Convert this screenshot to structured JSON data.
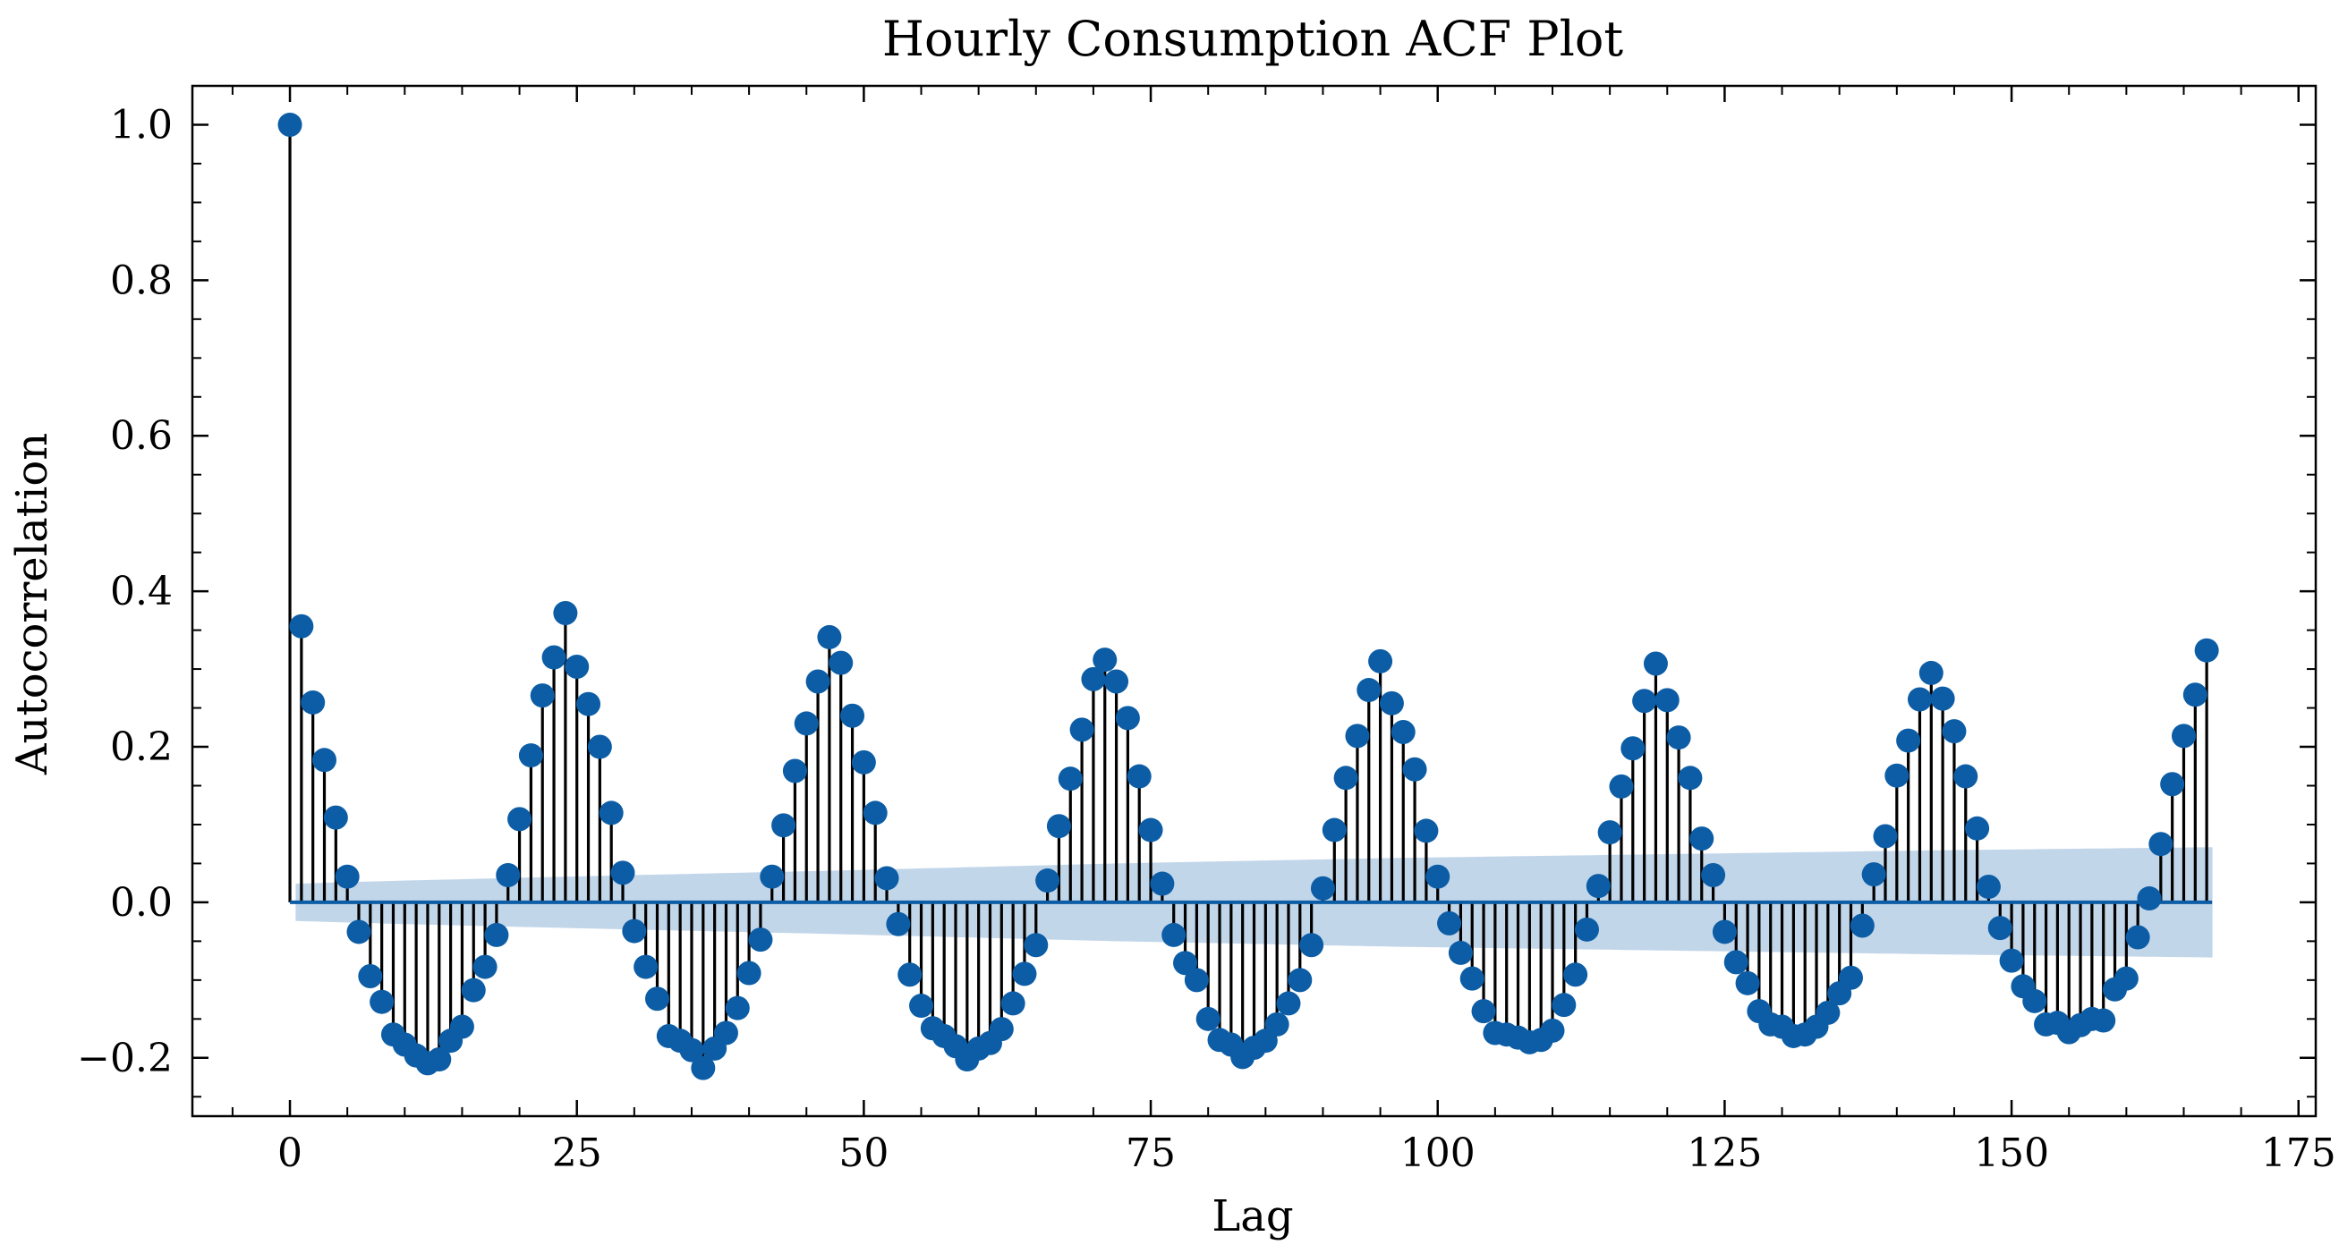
{
  "chart_data": {
    "type": "stem",
    "title": "Hourly Consumption ACF Plot",
    "xlabel": "Lag",
    "ylabel": "Autocorrelation",
    "xlim": [
      -8.5,
      176.5
    ],
    "ylim": [
      -0.275,
      1.05
    ],
    "x_ticks": [
      0,
      25,
      50,
      75,
      100,
      125,
      150,
      175
    ],
    "x_tick_labels": [
      "0",
      "25",
      "50",
      "75",
      "100",
      "125",
      "150",
      "175"
    ],
    "y_ticks": [
      -0.2,
      0.0,
      0.2,
      0.4,
      0.6,
      0.8,
      1.0
    ],
    "y_tick_labels": [
      "−0.2",
      "0.0",
      "0.2",
      "0.4",
      "0.6",
      "0.8",
      "1.0"
    ],
    "colors": {
      "markers": "#0C5DA5",
      "stems": "#000000",
      "baseline": "#0C5DA5",
      "confidence_band": "#c2d6ea"
    },
    "confidence_band": {
      "lags": [
        0.5,
        10,
        24,
        48,
        72,
        96,
        120,
        144,
        168
      ],
      "upper": [
        0.024,
        0.028,
        0.033,
        0.041,
        0.05,
        0.057,
        0.062,
        0.067,
        0.071
      ],
      "lower": [
        -0.024,
        -0.028,
        -0.033,
        -0.041,
        -0.05,
        -0.057,
        -0.062,
        -0.067,
        -0.071
      ]
    },
    "acf": [
      1.0,
      0.355,
      0.257,
      0.183,
      0.109,
      0.033,
      -0.038,
      -0.095,
      -0.128,
      -0.17,
      -0.183,
      -0.197,
      -0.207,
      -0.202,
      -0.178,
      -0.16,
      -0.113,
      -0.083,
      -0.042,
      0.035,
      0.107,
      0.189,
      0.266,
      0.315,
      0.372,
      0.303,
      0.255,
      0.2,
      0.115,
      0.038,
      -0.037,
      -0.083,
      -0.124,
      -0.172,
      -0.178,
      -0.19,
      -0.213,
      -0.188,
      -0.168,
      -0.136,
      -0.091,
      -0.048,
      0.033,
      0.099,
      0.169,
      0.23,
      0.284,
      0.341,
      0.308,
      0.24,
      0.18,
      0.115,
      0.031,
      -0.028,
      -0.093,
      -0.133,
      -0.162,
      -0.172,
      -0.185,
      -0.202,
      -0.188,
      -0.181,
      -0.163,
      -0.13,
      -0.092,
      -0.055,
      0.028,
      0.098,
      0.159,
      0.222,
      0.287,
      0.312,
      0.284,
      0.237,
      0.162,
      0.093,
      0.024,
      -0.042,
      -0.078,
      -0.1,
      -0.15,
      -0.177,
      -0.183,
      -0.199,
      -0.187,
      -0.178,
      -0.157,
      -0.13,
      -0.1,
      -0.055,
      0.018,
      0.093,
      0.16,
      0.214,
      0.273,
      0.31,
      0.256,
      0.219,
      0.171,
      0.092,
      0.033,
      -0.027,
      -0.065,
      -0.098,
      -0.14,
      -0.168,
      -0.17,
      -0.174,
      -0.18,
      -0.177,
      -0.165,
      -0.132,
      -0.093,
      -0.035,
      0.021,
      0.09,
      0.149,
      0.198,
      0.259,
      0.307,
      0.26,
      0.212,
      0.16,
      0.082,
      0.035,
      -0.038,
      -0.077,
      -0.104,
      -0.14,
      -0.157,
      -0.16,
      -0.172,
      -0.17,
      -0.16,
      -0.142,
      -0.117,
      -0.097,
      -0.03,
      0.036,
      0.085,
      0.163,
      0.208,
      0.261,
      0.295,
      0.262,
      0.22,
      0.162,
      0.095,
      0.02,
      -0.033,
      -0.075,
      -0.108,
      -0.127,
      -0.157,
      -0.155,
      -0.167,
      -0.158,
      -0.15,
      -0.152,
      -0.112,
      -0.098,
      -0.045,
      0.005,
      0.075,
      0.152,
      0.214,
      0.267,
      0.324
    ]
  }
}
